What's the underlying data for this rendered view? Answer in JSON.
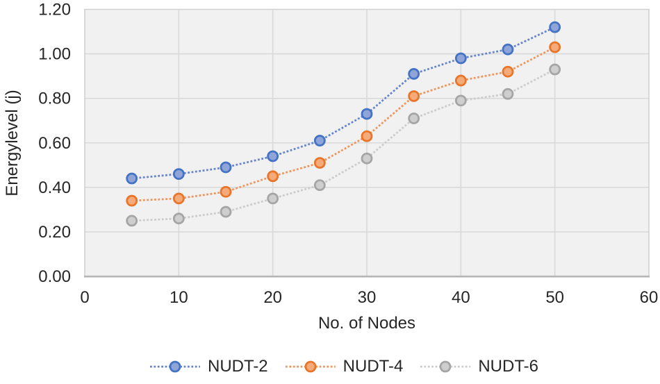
{
  "chart_data": {
    "type": "line",
    "title": "",
    "xlabel": "No. of Nodes",
    "ylabel": "Energylevel (j)",
    "x": [
      5,
      10,
      15,
      20,
      25,
      30,
      35,
      40,
      45,
      50
    ],
    "series": [
      {
        "name": "NUDT-2",
        "values": [
          0.44,
          0.46,
          0.49,
          0.54,
          0.61,
          0.73,
          0.91,
          0.98,
          1.02,
          1.12
        ],
        "line_color": "#6484cd",
        "marker_fill": "#8fa5d8",
        "marker_stroke": "#4472c4"
      },
      {
        "name": "NUDT-4",
        "values": [
          0.34,
          0.35,
          0.38,
          0.45,
          0.51,
          0.63,
          0.81,
          0.88,
          0.92,
          1.03
        ],
        "line_color": "#f0945c",
        "marker_fill": "#f4ab79",
        "marker_stroke": "#e8752a"
      },
      {
        "name": "NUDT-6",
        "values": [
          0.25,
          0.26,
          0.29,
          0.35,
          0.41,
          0.53,
          0.71,
          0.79,
          0.82,
          0.93
        ],
        "line_color": "#cbcbcb",
        "marker_fill": "#cecece",
        "marker_stroke": "#a5a5a5"
      }
    ],
    "xlim": [
      0,
      60
    ],
    "ylim": [
      0,
      1.2
    ],
    "x_tick_labels": [
      "0",
      "10",
      "20",
      "30",
      "40",
      "50",
      "60"
    ],
    "y_tick_labels": [
      "0.00",
      "0.20",
      "0.40",
      "0.60",
      "0.80",
      "1.00",
      "1.20"
    ],
    "grid": true,
    "line_style": "dotted",
    "marker": "circle",
    "legend_position": "bottom"
  }
}
